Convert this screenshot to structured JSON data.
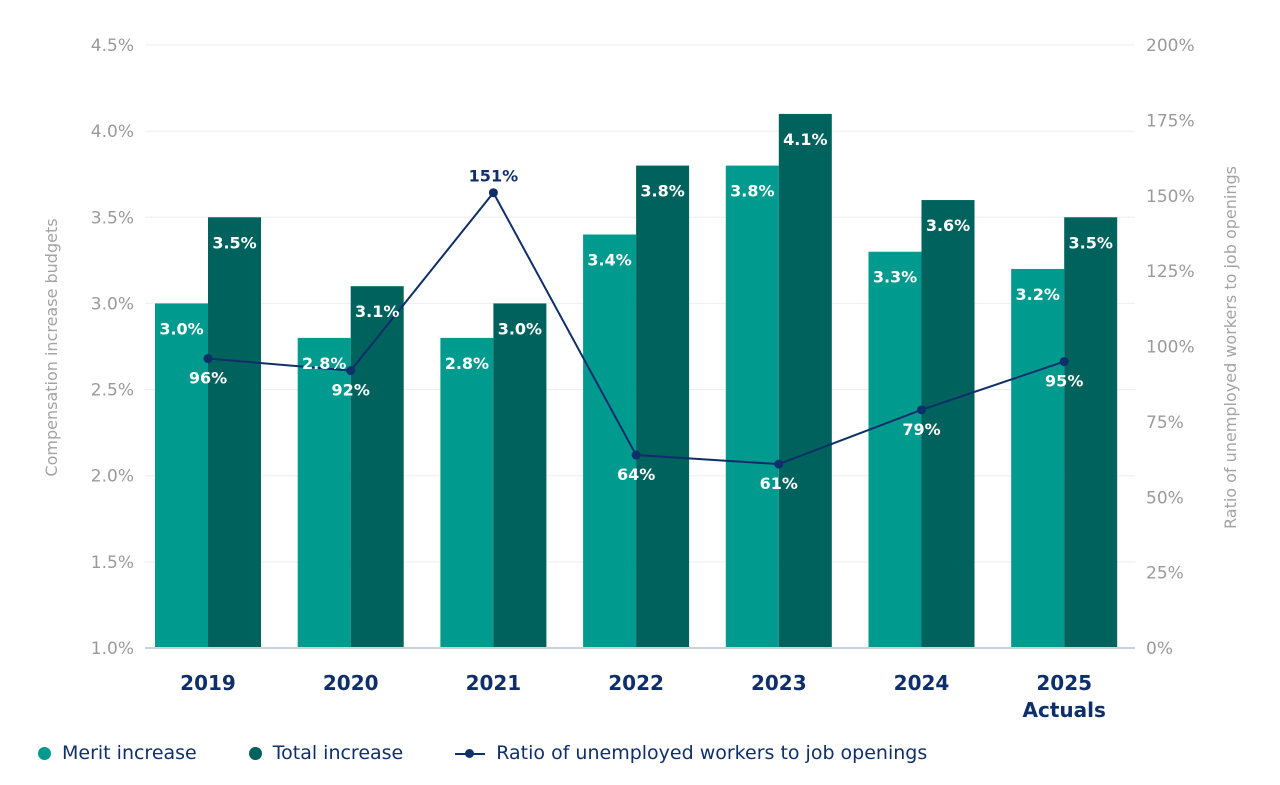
{
  "chart_data": {
    "type": "bar",
    "categories": [
      "2019",
      "2020",
      "2021",
      "2022",
      "2023",
      "2024",
      "2025\nActuals"
    ],
    "series": [
      {
        "name": "Merit increase",
        "type": "bar",
        "axis": "left",
        "color": "#009a8e",
        "values": [
          3.0,
          2.8,
          2.8,
          3.4,
          3.8,
          3.3,
          3.2
        ],
        "labels": [
          "3.0%",
          "2.8%",
          "2.8%",
          "3.4%",
          "3.8%",
          "3.3%",
          "3.2%"
        ]
      },
      {
        "name": "Total increase",
        "type": "bar",
        "axis": "left",
        "color": "#00625c",
        "values": [
          3.5,
          3.1,
          3.0,
          3.8,
          4.1,
          3.6,
          3.5
        ],
        "labels": [
          "3.5%",
          "3.1%",
          "3.0%",
          "3.8%",
          "4.1%",
          "3.6%",
          "3.5%"
        ]
      },
      {
        "name": "Ratio of unemployed workers to job openings",
        "type": "line",
        "axis": "right",
        "color": "#0f2f6b",
        "values": [
          96,
          92,
          151,
          64,
          61,
          79,
          95
        ],
        "labels": [
          "96%",
          "92%",
          "151%",
          "64%",
          "61%",
          "79%",
          "95%"
        ]
      }
    ],
    "y_left": {
      "label": "Compensation increase budgets",
      "range": [
        1.0,
        4.5
      ],
      "ticks": [
        "1.0%",
        "1.5%",
        "2.0%",
        "2.5%",
        "3.0%",
        "3.5%",
        "4.0%",
        "4.5%"
      ]
    },
    "y_right": {
      "label": "Ratio of unemployed workers to job openings",
      "range": [
        0,
        200
      ],
      "ticks": [
        "0%",
        "25%",
        "50%",
        "75%",
        "100%",
        "125%",
        "150%",
        "175%",
        "200%"
      ]
    },
    "grid": true,
    "legend_position": "bottom-left"
  },
  "legend": {
    "items": [
      {
        "label": "Merit increase",
        "color": "#009a8e",
        "shape": "dot"
      },
      {
        "label": "Total increase",
        "color": "#00625c",
        "shape": "dot"
      },
      {
        "label": "Ratio of unemployed workers to job openings",
        "color": "#0f2f6b",
        "shape": "line-dot"
      }
    ]
  }
}
